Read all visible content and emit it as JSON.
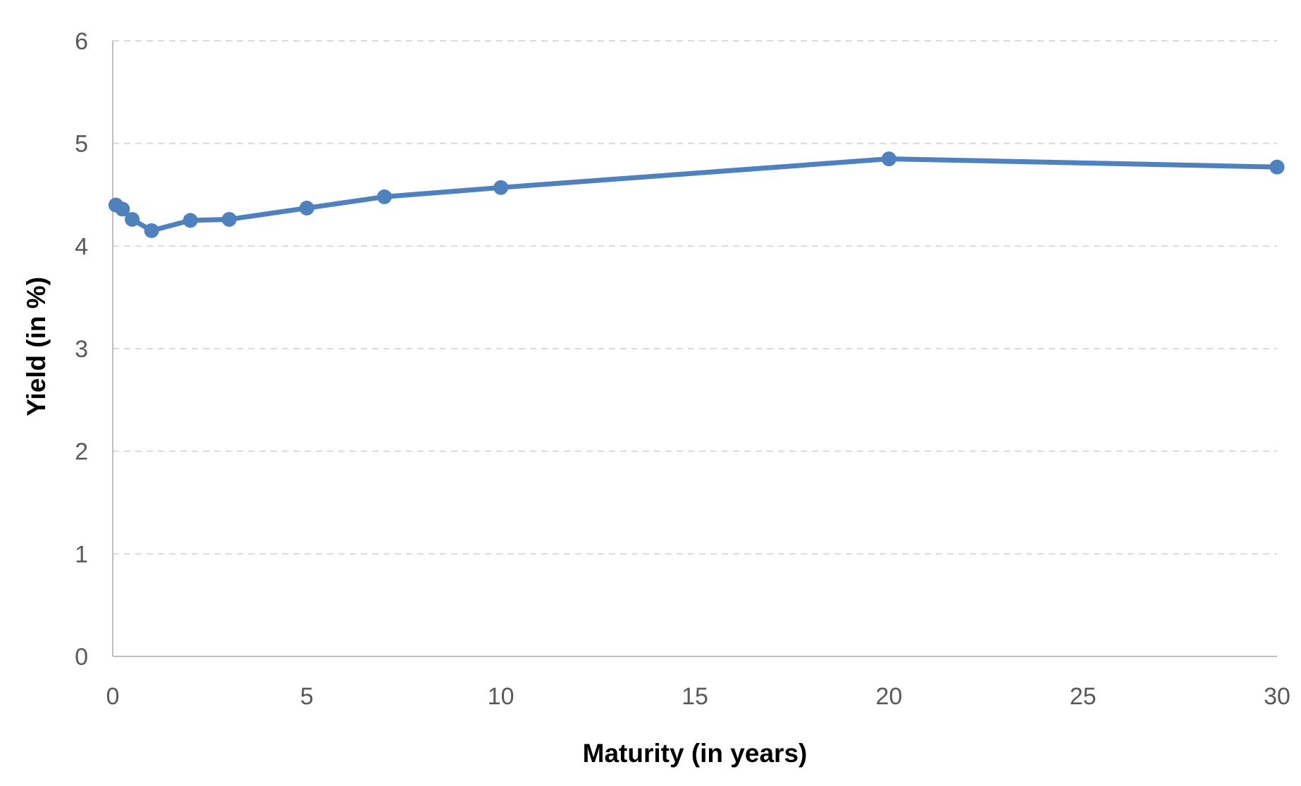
{
  "figure": {
    "background": "#FFFFFF"
  },
  "chart_data": {
    "type": "line",
    "title": "",
    "xlabel": "Maturity (in years)",
    "ylabel": "Yield (in %)",
    "series": [
      {
        "x": [
          0.08,
          0.25,
          0.5,
          1,
          2,
          3,
          5,
          7,
          10,
          20,
          30
        ],
        "y": [
          4.4,
          4.36,
          4.26,
          4.15,
          4.25,
          4.26,
          4.37,
          4.48,
          4.57,
          4.85,
          4.77
        ],
        "color": "#4E81BD",
        "marker": "circle",
        "marker_radius": 10.5,
        "line_width": 7
      }
    ],
    "xlim": [
      0,
      30
    ],
    "ylim": [
      0,
      6
    ],
    "xticks": [
      0,
      5,
      10,
      15,
      20,
      25,
      30
    ],
    "yticks": [
      0,
      1,
      2,
      3,
      4,
      5,
      6
    ],
    "grid": {
      "horizontal": true,
      "vertical": false,
      "style": "dashed",
      "color": "#D9D9D9"
    },
    "axis_color": "#BFBFBF",
    "tick_label_color": "#595959",
    "tick_label_size": 34,
    "legend": "none"
  }
}
